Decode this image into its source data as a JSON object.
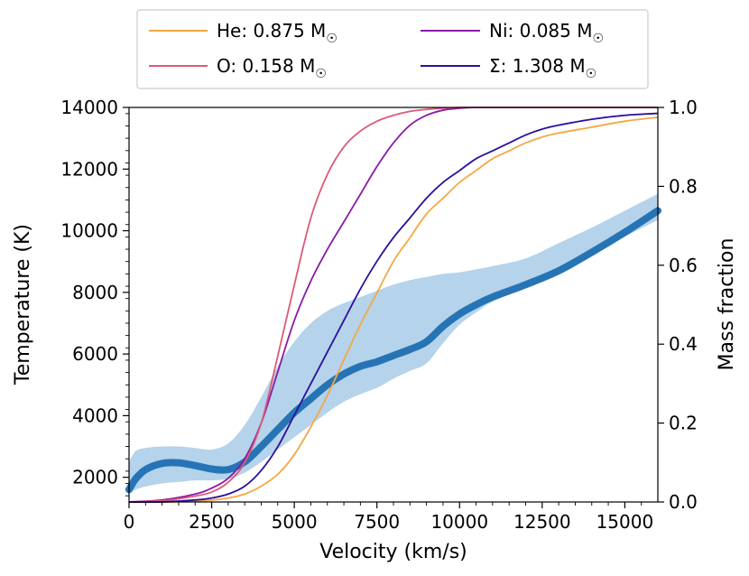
{
  "chart_data": {
    "type": "line",
    "xlabel": "Velocity (km/s)",
    "ylabel_left": "Temperature (K)",
    "ylabel_right": "Mass fraction",
    "xlim": [
      0,
      16000
    ],
    "ylim_left": [
      1200,
      14000
    ],
    "ylim_right": [
      0.0,
      1.0
    ],
    "x_ticks": [
      "0",
      "2500",
      "5000",
      "7500",
      "10000",
      "12500",
      "15000"
    ],
    "y_left_ticks": [
      "2000",
      "4000",
      "6000",
      "8000",
      "10000",
      "12000",
      "14000"
    ],
    "y_right_ticks": [
      "0.0",
      "0.2",
      "0.4",
      "0.6",
      "0.8",
      "1.0"
    ],
    "legend": {
      "position": "top-center",
      "entries": [
        {
          "label": "He: 0.875 M",
          "color": "#f5a742"
        },
        {
          "label": "Ni: 0.085 M",
          "color": "#8a1aa6"
        },
        {
          "label": "O: 0.158 M",
          "color": "#dc5a78"
        },
        {
          "label": "Σ: 1.308 M",
          "color": "#2d0f9c"
        }
      ],
      "sun_symbol": "☉"
    },
    "temperature": {
      "name": "Temperature",
      "color": "#2674b5",
      "band_color": "#b5d3ea",
      "x": [
        0,
        200,
        500,
        1000,
        1500,
        2000,
        2500,
        3000,
        3500,
        4000,
        4500,
        5000,
        5500,
        6000,
        6500,
        7000,
        7500,
        8000,
        8500,
        9000,
        9500,
        10000,
        10500,
        11000,
        12000,
        13000,
        14000,
        15000,
        16000
      ],
      "mean": [
        1600,
        1950,
        2250,
        2450,
        2470,
        2380,
        2270,
        2250,
        2500,
        3000,
        3550,
        4100,
        4550,
        5000,
        5350,
        5600,
        5750,
        5950,
        6150,
        6400,
        6900,
        7300,
        7600,
        7850,
        8250,
        8700,
        9300,
        9950,
        10650
      ],
      "upper": [
        2500,
        2850,
        2950,
        3000,
        3000,
        2950,
        2900,
        3100,
        3700,
        4600,
        5600,
        6400,
        7000,
        7400,
        7650,
        7850,
        8050,
        8250,
        8400,
        8500,
        8600,
        8650,
        8750,
        8850,
        9100,
        9600,
        10100,
        10650,
        11200
      ],
      "lower": [
        1500,
        1600,
        1700,
        1800,
        1850,
        1900,
        1900,
        1950,
        2150,
        2500,
        2900,
        3300,
        3700,
        4100,
        4450,
        4700,
        4900,
        5200,
        5450,
        5700,
        6350,
        6950,
        7350,
        7700,
        8150,
        8650,
        9200,
        9800,
        10350
      ]
    },
    "mass_fraction_x": [
      0,
      1000,
      2000,
      2500,
      3000,
      3500,
      4000,
      4500,
      5000,
      5500,
      6000,
      6500,
      7000,
      7500,
      8000,
      8500,
      9000,
      9500,
      10000,
      10500,
      11000,
      11500,
      12000,
      12500,
      13000,
      14000,
      15000,
      16000
    ],
    "series": [
      {
        "name": "He",
        "color": "#f5a742",
        "values": [
          0,
          0,
          0.002,
          0.005,
          0.01,
          0.02,
          0.04,
          0.07,
          0.12,
          0.19,
          0.27,
          0.36,
          0.45,
          0.53,
          0.61,
          0.67,
          0.73,
          0.77,
          0.81,
          0.84,
          0.87,
          0.89,
          0.91,
          0.925,
          0.935,
          0.95,
          0.965,
          0.975
        ]
      },
      {
        "name": "Ni",
        "color": "#8a1aa6",
        "values": [
          0,
          0.005,
          0.02,
          0.035,
          0.06,
          0.11,
          0.2,
          0.33,
          0.46,
          0.56,
          0.64,
          0.71,
          0.78,
          0.85,
          0.91,
          0.955,
          0.98,
          0.993,
          0.998,
          1.0,
          1.0,
          1.0,
          1.0,
          1.0,
          1.0,
          1.0,
          1.0,
          1.0
        ]
      },
      {
        "name": "O",
        "color": "#dc5a78",
        "values": [
          0,
          0.003,
          0.015,
          0.025,
          0.05,
          0.1,
          0.2,
          0.37,
          0.55,
          0.72,
          0.83,
          0.9,
          0.94,
          0.965,
          0.98,
          0.99,
          0.995,
          0.998,
          1.0,
          1.0,
          1.0,
          1.0,
          1.0,
          1.0,
          1.0,
          1.0,
          1.0,
          1.0
        ]
      },
      {
        "name": "Σ",
        "color": "#2d0f9c",
        "values": [
          0,
          0,
          0.005,
          0.01,
          0.02,
          0.04,
          0.08,
          0.14,
          0.22,
          0.3,
          0.38,
          0.46,
          0.54,
          0.61,
          0.67,
          0.72,
          0.77,
          0.81,
          0.84,
          0.87,
          0.89,
          0.91,
          0.93,
          0.945,
          0.955,
          0.97,
          0.98,
          0.985
        ]
      }
    ]
  }
}
